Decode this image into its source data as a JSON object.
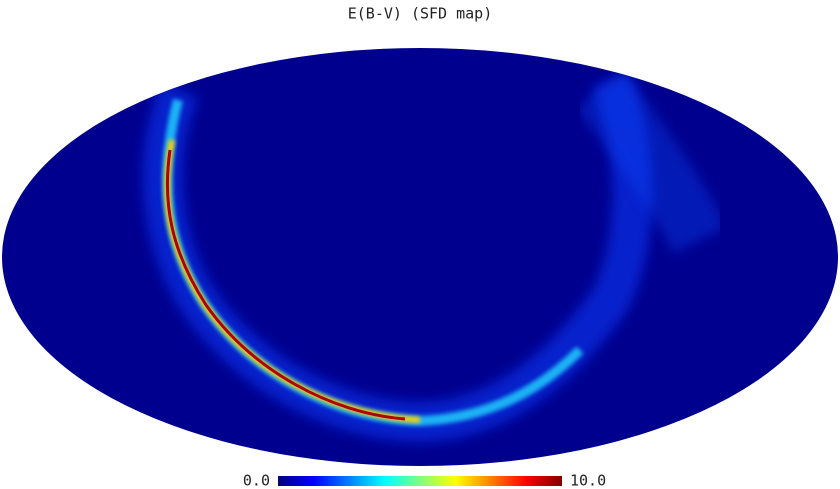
{
  "chart_data": {
    "type": "mollweide",
    "title": "E(B-V) (SFD map)",
    "colormap": "jet",
    "clim": [
      0,
      10
    ],
    "cticks": [
      {
        "value": 0,
        "label": "0.0"
      },
      {
        "value": 10,
        "label": "10.0"
      }
    ],
    "background": "#00008f"
  }
}
